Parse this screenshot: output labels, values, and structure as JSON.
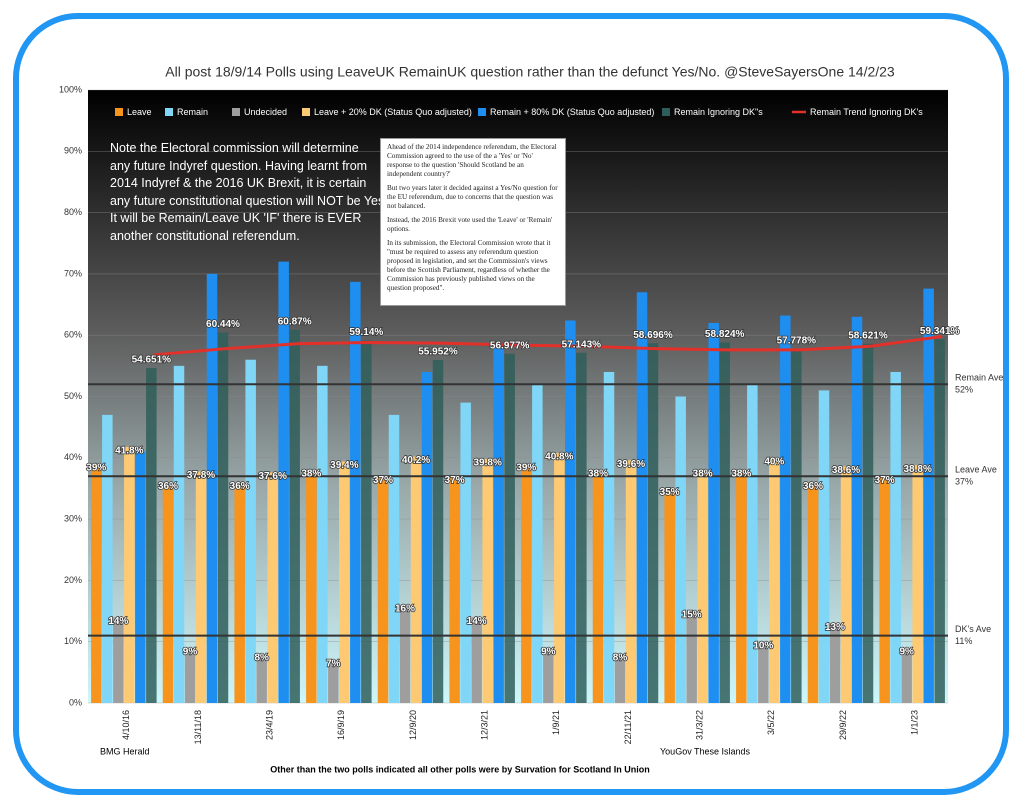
{
  "chart_data": {
    "type": "bar",
    "title": "All post 18/9/14 Polls using LeaveUK RemainUK question rather than the defunct Yes/No. @SteveSayersOne 14/2/23",
    "categories": [
      "4/10/16",
      "13/11/18",
      "23/4/19",
      "16/9/19",
      "12/9/20",
      "12/3/21",
      "1/9/21",
      "22/11/21",
      "31/3/22",
      "3/5/22",
      "29/9/22",
      "1/1/23"
    ],
    "series": [
      {
        "name": "Leave",
        "color": "#f7941d",
        "values": [
          39,
          36,
          36,
          38,
          37,
          37,
          39,
          38,
          35,
          38,
          36,
          37
        ],
        "value_labels": [
          "39%",
          "36%",
          "36%",
          "38%",
          "37%",
          "37%",
          "39%",
          "38%",
          "35%",
          "38%",
          "36%",
          "37%"
        ]
      },
      {
        "name": "Remain",
        "color": "#80d6f6",
        "values": [
          47,
          55,
          56,
          55,
          47,
          49,
          52,
          54,
          50,
          52,
          51,
          54
        ]
      },
      {
        "name": "Undecided",
        "color": "#9e9e9e",
        "values": [
          14,
          9,
          8,
          7,
          16,
          14,
          9,
          8,
          15,
          10,
          13,
          9
        ],
        "value_labels": [
          "14%",
          "9%",
          "8%",
          "7%",
          "16%",
          "14%",
          "9%",
          "8%",
          "15%",
          "10%",
          "13%",
          "9%"
        ]
      },
      {
        "name": "Leave + 20% DK (Status Quo adjusted)",
        "color": "#fdca73",
        "values": [
          41.8,
          37.8,
          37.6,
          39.4,
          40.2,
          39.8,
          40.8,
          39.6,
          38,
          40,
          38.6,
          38.8
        ],
        "value_labels": [
          "41.8%",
          "37.8%",
          "37.6%",
          "39.4%",
          "40.2%",
          "39.8%",
          "40.8%",
          "39.6%",
          "38%",
          "40%",
          "38.6%",
          "38.8%"
        ]
      },
      {
        "name": "Remain + 80% DK (Status Quo adjusted)",
        "color": "#1e8ff0",
        "values": [
          41,
          70,
          72,
          68.7,
          54,
          58,
          62.4,
          67,
          62,
          63.2,
          63,
          67.6
        ]
      },
      {
        "name": "Remain Ignoring  DK\"s",
        "color": "#2f5e5a",
        "values": [
          54.651,
          60.44,
          60.87,
          59.14,
          55.952,
          56.977,
          57.143,
          58.696,
          58.824,
          57.778,
          58.621,
          59.341
        ],
        "value_labels": [
          "54.651%",
          "60.44%",
          "60.87%",
          "59.14%",
          "55.952%",
          "56.977%",
          "57.143%",
          "58.696%",
          "58.824%",
          "57.778%",
          "58.621%",
          "59.341%"
        ]
      },
      {
        "name": "Remain Trend Ignoring DK's",
        "color": "#e3302a",
        "style": "line",
        "values": [
          56.8,
          57.8,
          58.6,
          58.8,
          58.7,
          58.4,
          58.2,
          57.8,
          57.6,
          57.6,
          58.2,
          59.8
        ]
      }
    ],
    "ylim": [
      0,
      100
    ],
    "yticks": [
      {
        "value": 0,
        "label": "0%"
      },
      {
        "value": 10,
        "label": "10%"
      },
      {
        "value": 20,
        "label": "20%"
      },
      {
        "value": 30,
        "label": "30%"
      },
      {
        "value": 40,
        "label": "40%"
      },
      {
        "value": 50,
        "label": "50%"
      },
      {
        "value": 60,
        "label": "60%"
      },
      {
        "value": 70,
        "label": "70%"
      },
      {
        "value": 80,
        "label": "80%"
      },
      {
        "value": 90,
        "label": "90%"
      },
      {
        "value": 100,
        "label": "100%"
      }
    ],
    "grid": true,
    "reference_lines": [
      {
        "label": "Remain Ave",
        "value_label": "52%",
        "value": 52
      },
      {
        "label": "Leave Ave",
        "value_label": "37%",
        "value": 37
      },
      {
        "label": "DK's Ave",
        "value_label": "11%",
        "value": 11
      }
    ],
    "note": [
      "Note the Electoral commission will determine",
      "any future Indyref question. Having learnt from",
      "2014 Indyref & the 2016 UK Brexit, it is certain",
      "any future constitutional question will NOT be Yes/No.",
      "It will be Remain/Leave UK 'IF' there is EVER",
      "another constitutional referendum."
    ],
    "box": [
      "Ahead of the 2014 independence referendum, the Electoral Commission agreed to the use of the a 'Yes' or 'No' response to the question 'Should Scotland be an independent country?'",
      "But two years later it decided against a Yes/No question for the EU referendum, due to concerns that the question was not balanced.",
      "Instead, the 2016 Brexit vote used the 'Leave' or 'Remain' options.",
      "In its submission, the Electoral Commission wrote that it \"must be required to assess any referendum question proposed in legislation, and set the Commission's views before the Scottish Parliament, regardless of whether the Commission has previously published views on the question proposed\"."
    ],
    "source_left": "BMG  Herald",
    "source_right": "YouGov These Islands",
    "footnote": "Other than the two polls indicated all other polls were by Survation for Scotland In Union"
  }
}
